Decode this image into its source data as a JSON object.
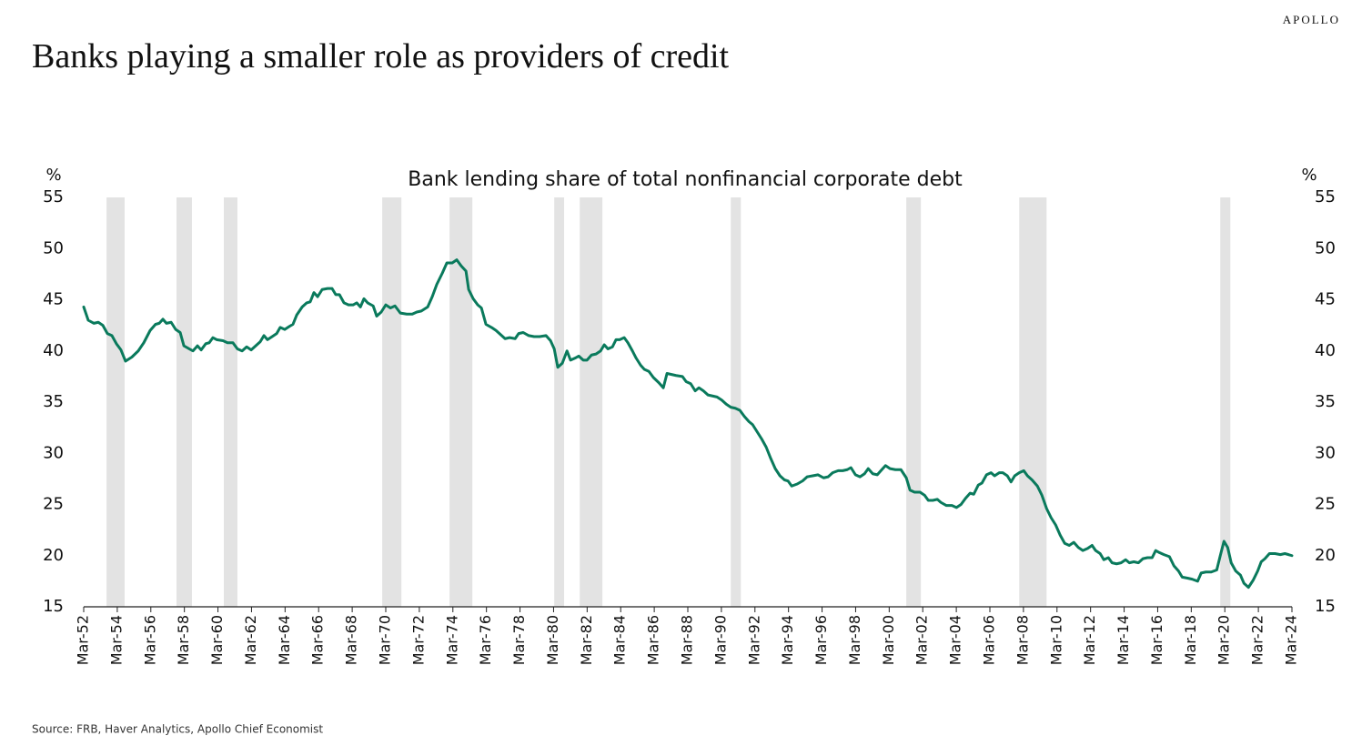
{
  "brand": "APOLLO",
  "title": "Banks playing a smaller role as providers of credit",
  "source": "Source: FRB, Haver Analytics, Apollo Chief Economist",
  "chart_data": {
    "type": "line",
    "title": "Bank lending share of total nonfinancial corporate debt",
    "y_label": "%",
    "y2_label": "%",
    "color": "#0a7a5c",
    "recession_color": "#e3e3e3",
    "grid": false,
    "x": [
      1952.17,
      1952.44,
      1952.77,
      1953.04,
      1953.31,
      1953.58,
      1953.85,
      1954.12,
      1954.39,
      1954.66,
      1955.04,
      1955.42,
      1955.75,
      1956.13,
      1956.45,
      1956.67,
      1956.89,
      1957.1,
      1957.38,
      1957.65,
      1957.92,
      1958.14,
      1958.46,
      1958.68,
      1958.95,
      1959.17,
      1959.44,
      1959.65,
      1959.87,
      1960.09,
      1960.47,
      1960.74,
      1961.06,
      1961.33,
      1961.61,
      1961.88,
      1962.15,
      1962.42,
      1962.69,
      1962.91,
      1963.12,
      1963.4,
      1963.67,
      1963.88,
      1964.15,
      1964.43,
      1964.64,
      1964.86,
      1965.19,
      1965.46,
      1965.67,
      1965.89,
      1966.11,
      1966.38,
      1966.7,
      1966.97,
      1967.19,
      1967.41,
      1967.68,
      1967.95,
      1968.22,
      1968.44,
      1968.66,
      1968.87,
      1969.09,
      1969.42,
      1969.63,
      1969.9,
      1970.17,
      1970.45,
      1970.72,
      1971.04,
      1971.42,
      1971.75,
      1972.02,
      1972.29,
      1972.67,
      1972.94,
      1973.21,
      1973.54,
      1973.81,
      1974.13,
      1974.4,
      1974.67,
      1974.95,
      1975.11,
      1975.38,
      1975.65,
      1975.87,
      1976.14,
      1976.47,
      1976.74,
      1977.01,
      1977.28,
      1977.55,
      1977.88,
      1978.09,
      1978.36,
      1978.69,
      1979.01,
      1979.34,
      1979.72,
      1979.99,
      1980.21,
      1980.42,
      1980.69,
      1980.97,
      1981.18,
      1981.45,
      1981.67,
      1981.94,
      1982.16,
      1982.43,
      1982.7,
      1982.97,
      1983.19,
      1983.41,
      1983.68,
      1983.89,
      1984.11,
      1984.38,
      1984.6,
      1984.87,
      1985.09,
      1985.36,
      1985.58,
      1985.85,
      1986.12,
      1986.44,
      1986.71,
      1986.93,
      1987.2,
      1987.47,
      1987.85,
      1988.07,
      1988.34,
      1988.61,
      1988.83,
      1989.1,
      1989.37,
      1989.64,
      1989.91,
      1990.19,
      1990.46,
      1990.73,
      1991.0,
      1991.27,
      1991.54,
      1991.81,
      1992.03,
      1992.3,
      1992.57,
      1992.84,
      1993.11,
      1993.38,
      1993.66,
      1993.93,
      1994.14,
      1994.36,
      1994.69,
      1995.01,
      1995.28,
      1995.61,
      1995.93,
      1996.26,
      1996.53,
      1996.8,
      1997.13,
      1997.4,
      1997.67,
      1997.89,
      1998.16,
      1998.43,
      1998.7,
      1998.92,
      1999.19,
      1999.46,
      1999.73,
      1999.95,
      2000.22,
      2000.54,
      2000.87,
      2001.19,
      2001.41,
      2001.68,
      2002.01,
      2002.28,
      2002.5,
      2002.77,
      2003.04,
      2003.25,
      2003.58,
      2003.91,
      2004.18,
      2004.45,
      2004.72,
      2004.99,
      2005.21,
      2005.48,
      2005.7,
      2005.97,
      2006.24,
      2006.45,
      2006.73,
      2006.94,
      2007.21,
      2007.43,
      2007.65,
      2007.92,
      2008.19,
      2008.41,
      2008.68,
      2009.0,
      2009.27,
      2009.55,
      2009.82,
      2010.09,
      2010.36,
      2010.63,
      2010.9,
      2011.17,
      2011.44,
      2011.71,
      2011.99,
      2012.26,
      2012.47,
      2012.74,
      2012.96,
      2013.23,
      2013.45,
      2013.72,
      2013.99,
      2014.26,
      2014.48,
      2014.75,
      2015.02,
      2015.29,
      2015.56,
      2015.84,
      2016.05,
      2016.27,
      2016.54,
      2016.87,
      2017.14,
      2017.41,
      2017.63,
      2017.95,
      2018.22,
      2018.55,
      2018.76,
      2019.04,
      2019.36,
      2019.69,
      2019.9,
      2020.12,
      2020.34,
      2020.55,
      2020.82,
      2021.1,
      2021.31,
      2021.58,
      2021.86,
      2022.13,
      2022.34,
      2022.56,
      2022.83,
      2023.16,
      2023.48,
      2023.75,
      2023.97,
      2024.17
    ],
    "values": [
      44.3,
      43.0,
      42.7,
      42.8,
      42.5,
      41.7,
      41.5,
      40.7,
      40.1,
      39.0,
      39.4,
      40.0,
      40.8,
      42.0,
      42.6,
      42.7,
      43.1,
      42.7,
      42.8,
      42.1,
      41.8,
      40.5,
      40.2,
      40.0,
      40.5,
      40.1,
      40.7,
      40.8,
      41.3,
      41.1,
      41.0,
      40.8,
      40.8,
      40.2,
      40.0,
      40.4,
      40.1,
      40.5,
      40.9,
      41.5,
      41.1,
      41.4,
      41.7,
      42.3,
      42.1,
      42.4,
      42.6,
      43.5,
      44.3,
      44.7,
      44.8,
      45.7,
      45.3,
      46.0,
      46.1,
      46.1,
      45.5,
      45.5,
      44.7,
      44.5,
      44.5,
      44.7,
      44.3,
      45.1,
      44.7,
      44.4,
      43.4,
      43.8,
      44.5,
      44.2,
      44.4,
      43.7,
      43.6,
      43.6,
      43.8,
      43.9,
      44.3,
      45.3,
      46.5,
      47.6,
      48.6,
      48.6,
      48.9,
      48.3,
      47.8,
      46.0,
      45.1,
      44.5,
      44.2,
      42.6,
      42.3,
      42.0,
      41.6,
      41.2,
      41.3,
      41.2,
      41.7,
      41.8,
      41.5,
      41.4,
      41.4,
      41.5,
      41.0,
      40.2,
      38.4,
      38.8,
      40.0,
      39.1,
      39.3,
      39.5,
      39.1,
      39.1,
      39.6,
      39.7,
      40.0,
      40.6,
      40.2,
      40.4,
      41.1,
      41.1,
      41.3,
      40.8,
      40.0,
      39.3,
      38.6,
      38.2,
      38.0,
      37.4,
      36.9,
      36.4,
      37.8,
      37.7,
      37.6,
      37.5,
      37.0,
      36.8,
      36.1,
      36.4,
      36.1,
      35.7,
      35.6,
      35.5,
      35.2,
      34.8,
      34.5,
      34.4,
      34.2,
      33.6,
      33.1,
      32.8,
      32.1,
      31.4,
      30.6,
      29.5,
      28.5,
      27.8,
      27.4,
      27.3,
      26.8,
      27.0,
      27.3,
      27.7,
      27.8,
      27.9,
      27.6,
      27.7,
      28.1,
      28.3,
      28.3,
      28.4,
      28.6,
      27.9,
      27.7,
      28.0,
      28.5,
      28.0,
      27.9,
      28.4,
      28.8,
      28.5,
      28.4,
      28.4,
      27.6,
      26.4,
      26.2,
      26.2,
      25.9,
      25.4,
      25.4,
      25.5,
      25.2,
      24.9,
      24.9,
      24.7,
      25.0,
      25.6,
      26.1,
      26.0,
      26.9,
      27.1,
      27.9,
      28.1,
      27.8,
      28.1,
      28.1,
      27.8,
      27.2,
      27.8,
      28.1,
      28.3,
      27.8,
      27.4,
      26.8,
      25.9,
      24.6,
      23.7,
      23.0,
      22.0,
      21.2,
      21.0,
      21.3,
      20.8,
      20.5,
      20.7,
      21.0,
      20.5,
      20.2,
      19.6,
      19.8,
      19.3,
      19.2,
      19.3,
      19.6,
      19.3,
      19.4,
      19.3,
      19.7,
      19.8,
      19.8,
      20.5,
      20.3,
      20.1,
      19.9,
      19.0,
      18.5,
      17.9,
      17.8,
      17.7,
      17.5,
      18.3,
      18.4,
      18.4,
      18.6,
      20.0,
      21.4,
      20.8,
      19.3,
      18.5,
      18.1,
      17.3,
      16.9,
      17.6,
      18.5,
      19.4,
      19.7,
      20.2,
      20.2,
      20.1,
      20.2,
      20.1,
      20.0
    ],
    "recessions": [
      [
        1953.53,
        1954.61
      ],
      [
        1957.7,
        1958.62
      ],
      [
        1960.52,
        1961.33
      ],
      [
        1969.96,
        1971.1
      ],
      [
        1973.97,
        1975.33
      ],
      [
        1980.21,
        1980.8
      ],
      [
        1981.73,
        1983.08
      ],
      [
        1990.73,
        1991.33
      ],
      [
        2001.19,
        2002.06
      ],
      [
        2007.92,
        2009.55
      ],
      [
        2019.9,
        2020.5
      ]
    ],
    "xlim": [
      1952.17,
      2024.17
    ],
    "xticks": [
      {
        "value": 1952.17,
        "label": "Mar-52"
      },
      {
        "value": 1954.17,
        "label": "Mar-54"
      },
      {
        "value": 1956.17,
        "label": "Mar-56"
      },
      {
        "value": 1958.17,
        "label": "Mar-58"
      },
      {
        "value": 1960.17,
        "label": "Mar-60"
      },
      {
        "value": 1962.17,
        "label": "Mar-62"
      },
      {
        "value": 1964.17,
        "label": "Mar-64"
      },
      {
        "value": 1966.17,
        "label": "Mar-66"
      },
      {
        "value": 1968.17,
        "label": "Mar-68"
      },
      {
        "value": 1970.17,
        "label": "Mar-70"
      },
      {
        "value": 1972.17,
        "label": "Mar-72"
      },
      {
        "value": 1974.17,
        "label": "Mar-74"
      },
      {
        "value": 1976.17,
        "label": "Mar-76"
      },
      {
        "value": 1978.17,
        "label": "Mar-78"
      },
      {
        "value": 1980.17,
        "label": "Mar-80"
      },
      {
        "value": 1982.17,
        "label": "Mar-82"
      },
      {
        "value": 1984.17,
        "label": "Mar-84"
      },
      {
        "value": 1986.17,
        "label": "Mar-86"
      },
      {
        "value": 1988.17,
        "label": "Mar-88"
      },
      {
        "value": 1990.17,
        "label": "Mar-90"
      },
      {
        "value": 1992.17,
        "label": "Mar-92"
      },
      {
        "value": 1994.17,
        "label": "Mar-94"
      },
      {
        "value": 1996.17,
        "label": "Mar-96"
      },
      {
        "value": 1998.17,
        "label": "Mar-98"
      },
      {
        "value": 2000.17,
        "label": "Mar-00"
      },
      {
        "value": 2002.17,
        "label": "Mar-02"
      },
      {
        "value": 2004.17,
        "label": "Mar-04"
      },
      {
        "value": 2006.17,
        "label": "Mar-06"
      },
      {
        "value": 2008.17,
        "label": "Mar-08"
      },
      {
        "value": 2010.17,
        "label": "Mar-10"
      },
      {
        "value": 2012.17,
        "label": "Mar-12"
      },
      {
        "value": 2014.17,
        "label": "Mar-14"
      },
      {
        "value": 2016.17,
        "label": "Mar-16"
      },
      {
        "value": 2018.17,
        "label": "Mar-18"
      },
      {
        "value": 2020.17,
        "label": "Mar-20"
      },
      {
        "value": 2022.17,
        "label": "Mar-22"
      },
      {
        "value": 2024.17,
        "label": "Mar-24"
      }
    ],
    "ylim": [
      15,
      55
    ],
    "yticks": [
      15,
      20,
      25,
      30,
      35,
      40,
      45,
      50,
      55
    ],
    "y2lim": [
      15,
      55
    ],
    "y2ticks": [
      15,
      20,
      25,
      30,
      35,
      40,
      45,
      50,
      55
    ]
  }
}
